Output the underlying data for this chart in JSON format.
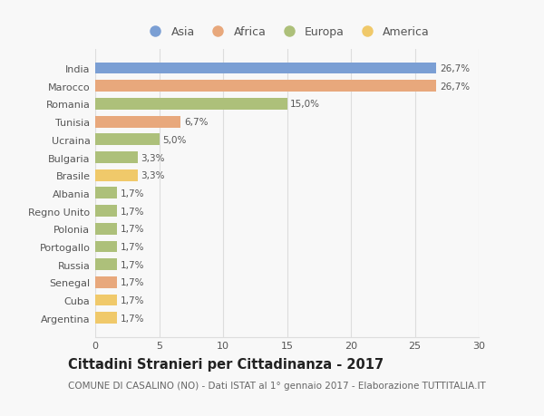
{
  "countries": [
    "India",
    "Marocco",
    "Romania",
    "Tunisia",
    "Ucraina",
    "Bulgaria",
    "Brasile",
    "Albania",
    "Regno Unito",
    "Polonia",
    "Portogallo",
    "Russia",
    "Senegal",
    "Cuba",
    "Argentina"
  ],
  "values": [
    26.7,
    26.7,
    15.0,
    6.7,
    5.0,
    3.3,
    3.3,
    1.7,
    1.7,
    1.7,
    1.7,
    1.7,
    1.7,
    1.7,
    1.7
  ],
  "labels": [
    "26,7%",
    "26,7%",
    "15,0%",
    "6,7%",
    "5,0%",
    "3,3%",
    "3,3%",
    "1,7%",
    "1,7%",
    "1,7%",
    "1,7%",
    "1,7%",
    "1,7%",
    "1,7%",
    "1,7%"
  ],
  "continents": [
    "Asia",
    "Africa",
    "Europa",
    "Africa",
    "Europa",
    "Europa",
    "America",
    "Europa",
    "Europa",
    "Europa",
    "Europa",
    "Europa",
    "Africa",
    "America",
    "America"
  ],
  "continent_colors": {
    "Asia": "#7b9fd4",
    "Africa": "#e8a87c",
    "Europa": "#adc07a",
    "America": "#f0c96a"
  },
  "legend_order": [
    "Asia",
    "Africa",
    "Europa",
    "America"
  ],
  "title_bold": "Cittadini Stranieri per Cittadinanza - 2017",
  "subtitle": "COMUNE DI CASALINO (NO) - Dati ISTAT al 1° gennaio 2017 - Elaborazione TUTTITALIA.IT",
  "xlim": [
    0,
    30
  ],
  "xticks": [
    0,
    5,
    10,
    15,
    20,
    25,
    30
  ],
  "background_color": "#f8f8f8",
  "grid_color": "#dddddd",
  "bar_height": 0.65,
  "title_fontsize": 10.5,
  "subtitle_fontsize": 7.5,
  "label_fontsize": 7.5,
  "tick_fontsize": 8,
  "legend_fontsize": 9
}
